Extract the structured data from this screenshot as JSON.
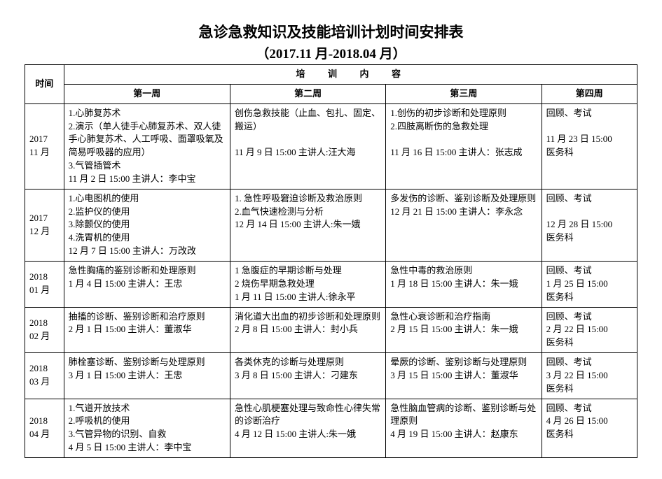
{
  "title": "急诊急救知识及技能培训计划时间安排表",
  "subtitle": "（2017.11 月-2018.04 月）",
  "colors": {
    "text": "#000000",
    "border": "#000000",
    "background": "#ffffff"
  },
  "typography": {
    "title_fontsize": 21,
    "subtitle_fontsize": 19,
    "cell_fontsize": 13,
    "font_family": "SimSun"
  },
  "header": {
    "time_label": "时间",
    "content_label": "培训内容",
    "week1": "第一周",
    "week2": "第二周",
    "week3": "第三周",
    "week4": "第四周"
  },
  "rows": [
    {
      "time": "2017\n11 月",
      "w1": "1.心肺复苏术\n2.演示（单人徒手心肺复苏术、双人徒手心肺复苏术、人工呼吸、面罩吸氧及简易呼吸器的应用）\n3.气管插管术\n11 月 2 日 15:00   主讲人：李中宝",
      "w2": "创伤急救技能（止血、包扎、固定、搬运）\n\n11 月 9 日 15:00 主讲人:汪大海",
      "w3": "1.创伤的初步诊断和处理原则\n2.四肢离断伤的急救处理\n\n11 月 16 日 15:00 主讲人：张志成",
      "w4": "回顾、考试\n\n11 月 23 日 15:00\n医务科"
    },
    {
      "time": "2017\n12 月",
      "w1": "1.心电图机的使用\n2.监护仪的使用\n3.除颤仪的使用\n4.洗胃机的使用\n12 月 7 日  15:00   主讲人：万改改",
      "w2": "1. 急性呼吸窘迫诊断及救治原则\n2.血气快速检测与分析\n12 月 14 日 15:00 主讲人:朱一娥",
      "w3": "多发伤的诊断、鉴别诊断及处理原则\n12 月 21 日 15:00   主讲人：李永念",
      "w4": "回顾、考试\n\n12 月 28 日 15:00\n医务科"
    },
    {
      "time": "2018\n01 月",
      "w1": "急性胸痛的鉴别诊断和处理原则\n1 月 4 日 15:00   主讲人：王忠",
      "w2": "1 急腹症的早期诊断与处理\n2 烧伤早期急救处理\n1 月 11 日 15:00 主讲人:徐永平",
      "w3": "急性中毒的救治原则\n1 月 18 日 15:00   主讲人：朱一娥",
      "w4": "回顾、考试\n1 月 25 日 15:00\n医务科"
    },
    {
      "time": "2018\n02 月",
      "w1": "抽搐的诊断、鉴别诊断和治疗原则\n2 月 1 日 15:00   主讲人：董淑华",
      "w2": "消化道大出血的初步诊断和处理原则\n2 月 8 日 15:00   主讲人：封小兵",
      "w3": "急性心衰诊断和治疗指南\n2 月 15 日 15:00   主讲人：朱一娥",
      "w4": "回顾、考试\n2 月 22 日 15:00\n医务科"
    },
    {
      "time": "2018\n03 月",
      "w1": "肺栓塞诊断、鉴别诊断与处理原则\n3 月 1 日 15:00   主讲人：王忠",
      "w2": "各类休克的诊断与处理原则\n3 月 8 日 15:00   主讲人：刁建东",
      "w3": "晕厥的诊断、鉴别诊断与处理原则\n3 月 15 日 15:00   主讲人：董淑华",
      "w4": "回顾、考试\n3 月 22 日 15:00\n医务科"
    },
    {
      "time": "2018\n04 月",
      "w1": "1.气道开放技术\n2.呼吸机的使用\n3.气管异物的识别、自救\n4 月 5 日 15:00   主讲人：李中宝",
      "w2": "急性心肌梗塞处理与致命性心律失常的诊断治疗\n4 月 12 日 15:00 主讲人:朱一娥",
      "w3": "急性脑血管病的诊断、鉴别诊断与处理原则\n4 月 19 日 15:00   主讲人：赵康东",
      "w4": "回顾、考试\n4 月 26 日 15:00\n医务科"
    }
  ]
}
